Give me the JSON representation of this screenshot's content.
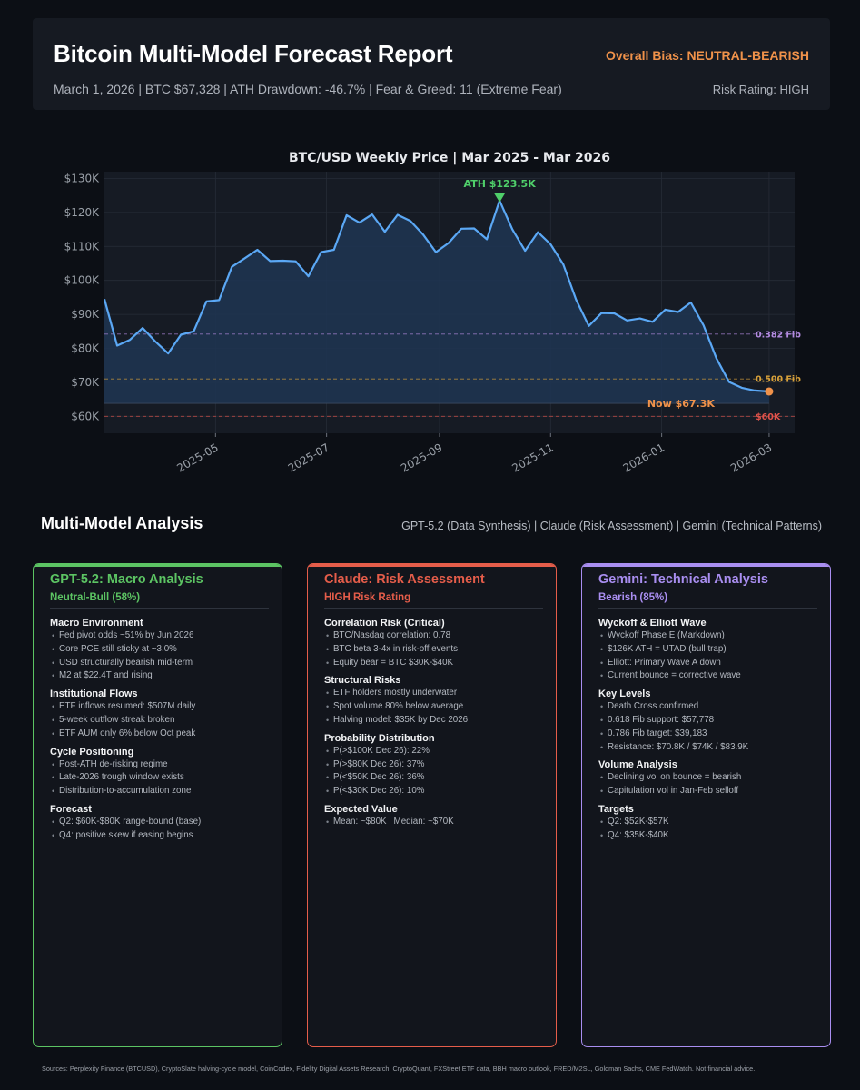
{
  "header": {
    "title": "Bitcoin Multi-Model Forecast Report",
    "bias": "Overall Bias: NEUTRAL-BEARISH",
    "meta": "March 1, 2026  |  BTC $67,328  |  ATH Drawdown: -46.7%  |  Fear & Greed: 11 (Extreme Fear)",
    "risk": "Risk Rating: HIGH"
  },
  "chart_data": {
    "type": "line",
    "title": "BTC/USD Weekly Price  |  Mar 2025 - Mar 2026",
    "xlabel": "",
    "ylabel": "",
    "ylim": [
      55000,
      132000
    ],
    "xlim": [
      "2025-03-01",
      "2026-03-15"
    ],
    "y_ticks": [
      60000,
      70000,
      80000,
      90000,
      100000,
      110000,
      120000,
      130000
    ],
    "y_tick_labels": [
      "$60K",
      "$70K",
      "$80K",
      "$90K",
      "$100K",
      "$110K",
      "$120K",
      "$130K"
    ],
    "x_ticks": [
      "2025-05-01",
      "2025-07-01",
      "2025-09-01",
      "2025-11-01",
      "2026-01-01",
      "2026-03-01"
    ],
    "x_tick_labels": [
      "2025-05",
      "2025-07",
      "2025-09",
      "2025-11",
      "2026-01",
      "2026-03"
    ],
    "grid": true,
    "series": [
      {
        "name": "BTC/USD",
        "color": "#5ba8f5",
        "x": [
          "2025-03-01",
          "2025-03-08",
          "2025-03-15",
          "2025-03-22",
          "2025-03-29",
          "2025-04-05",
          "2025-04-12",
          "2025-04-19",
          "2025-04-26",
          "2025-05-03",
          "2025-05-10",
          "2025-05-17",
          "2025-05-24",
          "2025-05-31",
          "2025-06-07",
          "2025-06-14",
          "2025-06-21",
          "2025-06-28",
          "2025-07-05",
          "2025-07-12",
          "2025-07-19",
          "2025-07-26",
          "2025-08-02",
          "2025-08-09",
          "2025-08-16",
          "2025-08-23",
          "2025-08-30",
          "2025-09-06",
          "2025-09-13",
          "2025-09-20",
          "2025-09-27",
          "2025-10-04",
          "2025-10-11",
          "2025-10-18",
          "2025-10-25",
          "2025-11-01",
          "2025-11-08",
          "2025-11-15",
          "2025-11-22",
          "2025-11-29",
          "2025-12-06",
          "2025-12-13",
          "2025-12-20",
          "2025-12-27",
          "2026-01-03",
          "2026-01-10",
          "2026-01-17",
          "2026-01-24",
          "2026-01-31",
          "2026-02-07",
          "2026-02-14",
          "2026-02-21",
          "2026-03-01"
        ],
        "y": [
          94500,
          80800,
          82500,
          86000,
          82000,
          78500,
          84000,
          85000,
          93800,
          94200,
          104000,
          106500,
          109000,
          105700,
          105800,
          105600,
          101200,
          108300,
          109000,
          119200,
          117000,
          119400,
          114300,
          119300,
          117500,
          113500,
          108300,
          111000,
          115200,
          115300,
          112100,
          123500,
          115000,
          108700,
          114200,
          110600,
          104700,
          94300,
          86600,
          90400,
          90300,
          88200,
          88800,
          87800,
          91400,
          90700,
          93500,
          86800,
          77100,
          70100,
          68400,
          67600,
          67300
        ]
      }
    ],
    "reference_lines": [
      {
        "label": "0.382 Fib",
        "value": 84200,
        "color": "#b38be0"
      },
      {
        "label": "0.500 Fib",
        "value": 71000,
        "color": "#d9a23a"
      },
      {
        "label": "$60K",
        "value": 60000,
        "color": "#e0524a"
      }
    ],
    "annotations": [
      {
        "label": "ATH $123.5K",
        "x": "2025-10-04",
        "y": 123500,
        "color": "#4fcf6a"
      },
      {
        "label": "Now $67.3K",
        "x": "2026-03-01",
        "y": 67300,
        "color": "#f0924a"
      }
    ],
    "fill_baseline": 63800
  },
  "analysis": {
    "title": "Multi-Model Analysis",
    "subtitle": "GPT-5.2 (Data Synthesis)  |  Claude (Risk Assessment)  |  Gemini (Technical Patterns)"
  },
  "cards": [
    {
      "title": "GPT-5.2: Macro Analysis",
      "subtitle": "Neutral-Bull (58%)",
      "color": "#5cc463",
      "sections": [
        {
          "heading": "Macro Environment",
          "items": [
            "Fed pivot odds ~51% by Jun 2026",
            "Core PCE still sticky at ~3.0%",
            "USD structurally bearish mid-term",
            "M2 at $22.4T and rising"
          ]
        },
        {
          "heading": "Institutional Flows",
          "items": [
            "ETF inflows resumed: $507M daily",
            "5-week outflow streak broken",
            "ETF AUM only 6% below Oct peak"
          ]
        },
        {
          "heading": "Cycle Positioning",
          "items": [
            "Post-ATH de-risking regime",
            "Late-2026 trough window exists",
            "Distribution-to-accumulation zone"
          ]
        },
        {
          "heading": "Forecast",
          "items": [
            "Q2: $60K-$80K range-bound (base)",
            "Q4: positive skew if easing begins"
          ]
        }
      ]
    },
    {
      "title": "Claude: Risk Assessment",
      "subtitle": "HIGH Risk Rating",
      "color": "#e55d4a",
      "sections": [
        {
          "heading": "Correlation Risk (Critical)",
          "items": [
            "BTC/Nasdaq correlation: 0.78",
            "BTC beta 3-4x in risk-off events",
            "Equity bear = BTC $30K-$40K"
          ]
        },
        {
          "heading": "Structural Risks",
          "items": [
            "ETF holders mostly underwater",
            "Spot volume 80% below average",
            "Halving model: $35K by Dec 2026"
          ]
        },
        {
          "heading": "Probability Distribution",
          "items": [
            "P(>$100K Dec 26): 22%",
            "P(>$80K Dec 26): 37%",
            "P(<$50K Dec 26): 36%",
            "P(<$30K Dec 26): 10%"
          ]
        },
        {
          "heading": "Expected Value",
          "items": [
            "Mean: ~$80K  |  Median: ~$70K"
          ]
        }
      ]
    },
    {
      "title": "Gemini: Technical Analysis",
      "subtitle": "Bearish (85%)",
      "color": "#a98ef0",
      "sections": [
        {
          "heading": "Wyckoff & Elliott Wave",
          "items": [
            "Wyckoff Phase E (Markdown)",
            "$126K ATH = UTAD (bull trap)",
            "Elliott: Primary Wave A down",
            "Current bounce = corrective wave"
          ]
        },
        {
          "heading": "Key Levels",
          "items": [
            "Death Cross confirmed",
            "0.618 Fib support: $57,778",
            "0.786 Fib target: $39,183",
            "Resistance: $70.8K / $74K / $83.9K"
          ]
        },
        {
          "heading": "Volume Analysis",
          "items": [
            "Declining vol on bounce = bearish",
            "Capitulation vol in Jan-Feb selloff"
          ]
        },
        {
          "heading": "Targets",
          "items": [
            "Q2: $52K-$57K",
            "Q4: $35K-$40K"
          ]
        }
      ]
    }
  ],
  "sources": "Sources: Perplexity Finance (BTCUSD), CryptoSlate halving-cycle model, CoinCodex, Fidelity Digital Assets Research, CryptoQuant, FXStreet ETF data, BBH macro outlook, FRED/M2SL, Goldman Sachs, CME FedWatch. Not financial advice."
}
